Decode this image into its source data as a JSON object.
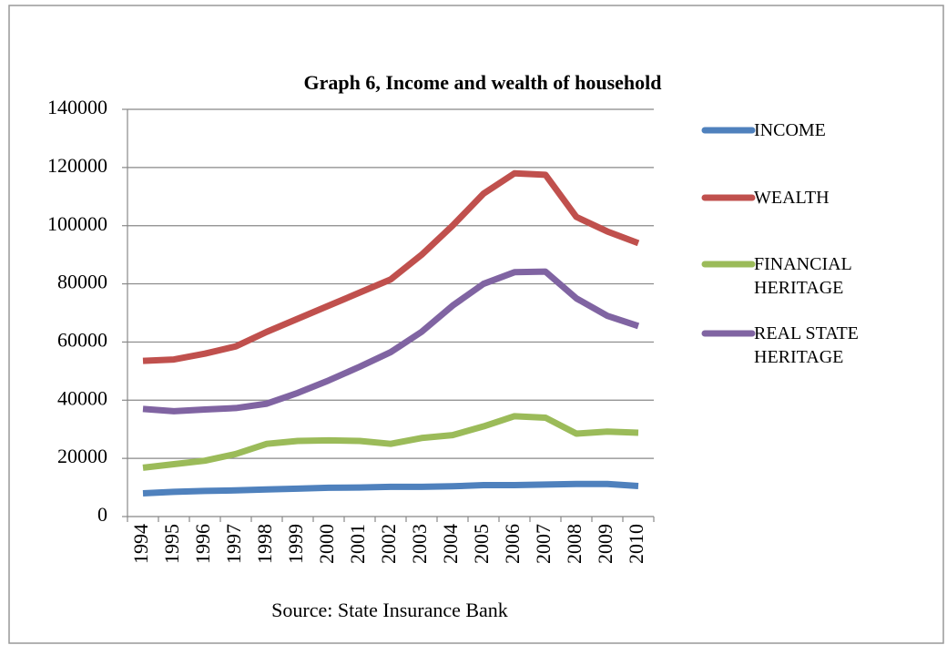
{
  "chart_data": {
    "type": "line",
    "title": "Graph 6, Income and wealth of household",
    "x_label": "Source: State Insurance Bank",
    "categories": [
      "1994",
      "1995",
      "1996",
      "1997",
      "1998",
      "1999",
      "2000",
      "2001",
      "2002",
      "2003",
      "2004",
      "2005",
      "2006",
      "2007",
      "2008",
      "2009",
      "2010"
    ],
    "series": [
      {
        "name": "INCOME",
        "color": "#4f81bd",
        "values": [
          8000,
          8500,
          8800,
          9000,
          9300,
          9600,
          9900,
          10000,
          10200,
          10200,
          10400,
          10800,
          10800,
          11000,
          11200,
          11200,
          10500
        ]
      },
      {
        "name": "WEALTH",
        "color": "#c0504d",
        "values": [
          53500,
          54000,
          56000,
          58500,
          63500,
          68000,
          72500,
          77000,
          81500,
          90000,
          100000,
          111000,
          118000,
          117500,
          103000,
          98000,
          94000
        ]
      },
      {
        "name": "FINANCIAL HERITAGE",
        "color": "#9bbb59",
        "values": [
          16800,
          18000,
          19200,
          21500,
          25000,
          26000,
          26200,
          26000,
          25000,
          27000,
          28000,
          31000,
          34500,
          34000,
          28500,
          29200,
          28800
        ]
      },
      {
        "name": "REAL STATE HERITAGE",
        "color": "#8064a2",
        "values": [
          37000,
          36200,
          36800,
          37300,
          38800,
          42500,
          46800,
          51500,
          56500,
          63500,
          72500,
          80000,
          84000,
          84200,
          75000,
          69000,
          65500
        ]
      }
    ],
    "ylim": [
      0,
      140000
    ],
    "yticks": [
      0,
      20000,
      40000,
      60000,
      80000,
      100000,
      120000,
      140000
    ],
    "grid": true,
    "legend": "right"
  }
}
